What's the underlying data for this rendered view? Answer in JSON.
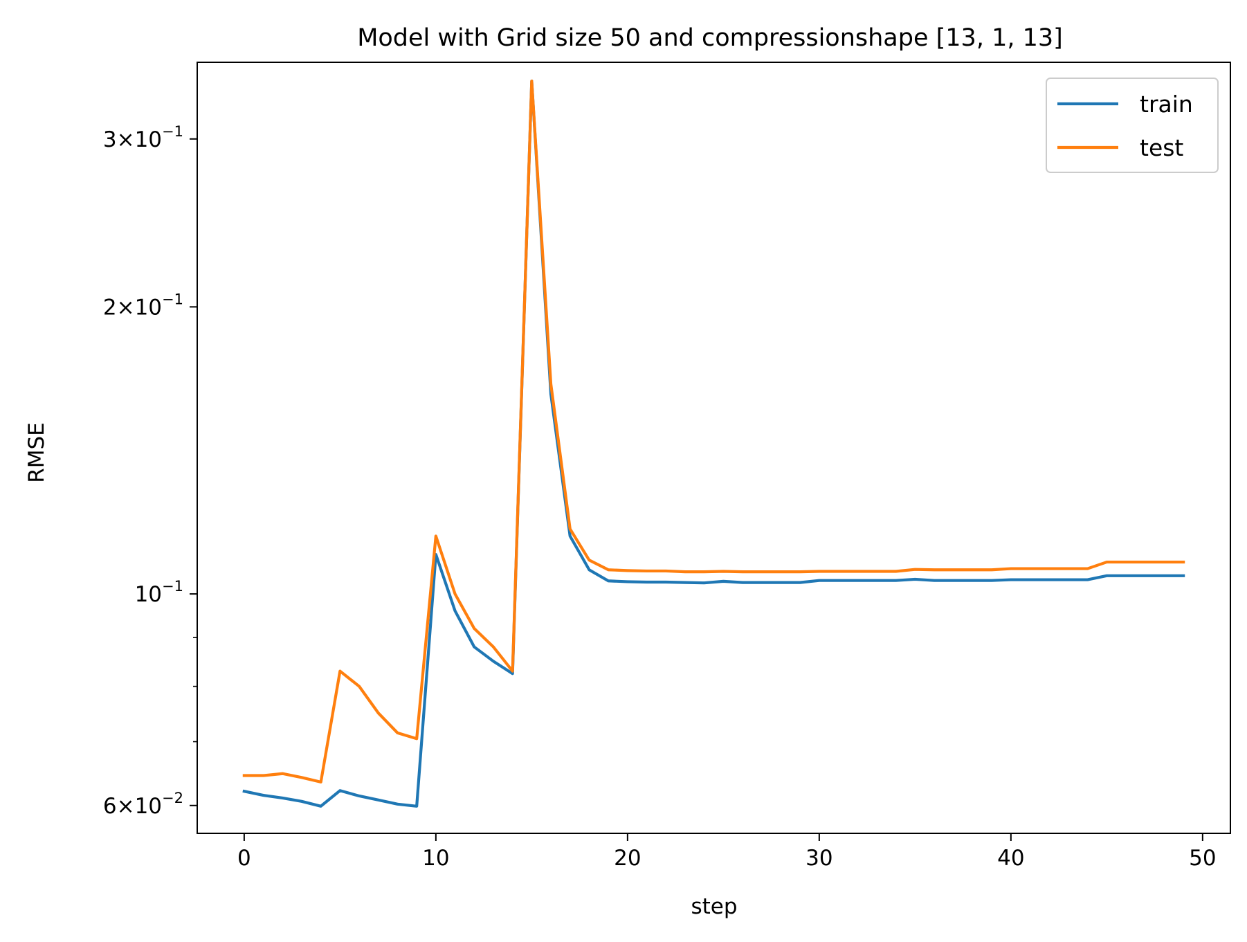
{
  "chart_data": {
    "type": "line",
    "title": "Model with Grid size 50 and compressionshape [13, 1, 13]",
    "xlabel": "step",
    "ylabel": "RMSE",
    "xlim": [
      -2.45,
      51.45
    ],
    "ylim": [
      0.0561,
      0.361
    ],
    "yscale": "log",
    "grid": false,
    "legend_position": "top-right",
    "x_ticks": [
      0,
      10,
      20,
      30,
      40,
      50
    ],
    "y_ticks": [
      {
        "value": 0.06,
        "mantissa": "6",
        "base": "10",
        "exp": "−2"
      },
      {
        "value": 0.1,
        "mantissa": "",
        "base": "10",
        "exp": "−1"
      },
      {
        "value": 0.2,
        "mantissa": "2",
        "base": "10",
        "exp": "−1"
      },
      {
        "value": 0.3,
        "mantissa": "3",
        "base": "10",
        "exp": "−1"
      }
    ],
    "y_minor_ticks": [
      0.07,
      0.08,
      0.09
    ],
    "x": [
      0,
      1,
      2,
      3,
      4,
      5,
      6,
      7,
      8,
      9,
      10,
      11,
      12,
      13,
      14,
      15,
      16,
      17,
      18,
      19,
      20,
      21,
      22,
      23,
      24,
      25,
      26,
      27,
      28,
      29,
      30,
      31,
      32,
      33,
      34,
      35,
      36,
      37,
      38,
      39,
      40,
      41,
      42,
      43,
      44,
      45,
      46,
      47,
      48,
      49
    ],
    "series": [
      {
        "name": "train",
        "color": "#1f77b4",
        "values": [
          0.0621,
          0.0615,
          0.0611,
          0.0606,
          0.0599,
          0.0622,
          0.0614,
          0.0608,
          0.0602,
          0.0599,
          0.11,
          0.096,
          0.088,
          0.085,
          0.0825,
          0.345,
          0.162,
          0.115,
          0.106,
          0.1032,
          0.103,
          0.1029,
          0.1029,
          0.1028,
          0.1027,
          0.1031,
          0.1028,
          0.1028,
          0.1028,
          0.1028,
          0.1033,
          0.1033,
          0.1033,
          0.1033,
          0.1033,
          0.1036,
          0.1033,
          0.1033,
          0.1033,
          0.1033,
          0.1035,
          0.1035,
          0.1035,
          0.1035,
          0.1035,
          0.1045,
          0.1045,
          0.1045,
          0.1045,
          0.1045
        ]
      },
      {
        "name": "test",
        "color": "#ff7f0e",
        "values": [
          0.0645,
          0.0645,
          0.0648,
          0.0642,
          0.0635,
          0.083,
          0.08,
          0.075,
          0.0715,
          0.0705,
          0.115,
          0.1,
          0.092,
          0.088,
          0.083,
          0.345,
          0.166,
          0.117,
          0.1085,
          0.106,
          0.1058,
          0.1057,
          0.1057,
          0.1055,
          0.1055,
          0.1056,
          0.1055,
          0.1055,
          0.1055,
          0.1055,
          0.1056,
          0.1056,
          0.1056,
          0.1056,
          0.1056,
          0.1061,
          0.106,
          0.106,
          0.106,
          0.106,
          0.1063,
          0.1063,
          0.1063,
          0.1063,
          0.1063,
          0.108,
          0.108,
          0.108,
          0.108,
          0.108
        ]
      }
    ]
  }
}
